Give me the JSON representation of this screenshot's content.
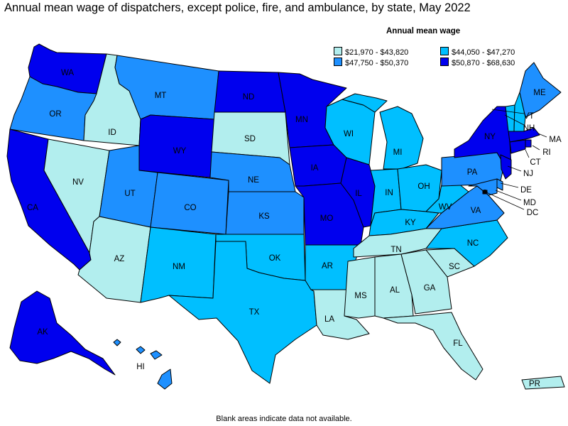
{
  "title": "Annual mean wage of dispatchers, except police, fire, and ambulance, by state, May 2022",
  "legend": {
    "title": "Annual mean wage",
    "items": [
      {
        "label": "$21,970 - $43,820",
        "color": "#b2eeee"
      },
      {
        "label": "$44,050 - $47,270",
        "color": "#00bfff"
      },
      {
        "label": "$47,750 - $50,370",
        "color": "#1e90ff"
      },
      {
        "label": "$50,870 - $68,630",
        "color": "#0000ee"
      }
    ]
  },
  "footnote": "Blank areas indicate data not available.",
  "states": [
    {
      "abbr": "WA",
      "bin": 3
    },
    {
      "abbr": "OR",
      "bin": 2
    },
    {
      "abbr": "CA",
      "bin": 3
    },
    {
      "abbr": "NV",
      "bin": 0
    },
    {
      "abbr": "ID",
      "bin": 0
    },
    {
      "abbr": "MT",
      "bin": 2
    },
    {
      "abbr": "WY",
      "bin": 3
    },
    {
      "abbr": "UT",
      "bin": 2
    },
    {
      "abbr": "AZ",
      "bin": 0
    },
    {
      "abbr": "CO",
      "bin": 2
    },
    {
      "abbr": "NM",
      "bin": 1
    },
    {
      "abbr": "ND",
      "bin": 3
    },
    {
      "abbr": "SD",
      "bin": 0
    },
    {
      "abbr": "NE",
      "bin": 2
    },
    {
      "abbr": "KS",
      "bin": 2
    },
    {
      "abbr": "OK",
      "bin": 1
    },
    {
      "abbr": "TX",
      "bin": 1
    },
    {
      "abbr": "MN",
      "bin": 3
    },
    {
      "abbr": "IA",
      "bin": 3
    },
    {
      "abbr": "MO",
      "bin": 3
    },
    {
      "abbr": "AR",
      "bin": 1
    },
    {
      "abbr": "LA",
      "bin": 0
    },
    {
      "abbr": "WI",
      "bin": 1
    },
    {
      "abbr": "IL",
      "bin": 3
    },
    {
      "abbr": "MI",
      "bin": 1
    },
    {
      "abbr": "IN",
      "bin": 1
    },
    {
      "abbr": "OH",
      "bin": 1
    },
    {
      "abbr": "KY",
      "bin": 1
    },
    {
      "abbr": "TN",
      "bin": 0
    },
    {
      "abbr": "MS",
      "bin": 0
    },
    {
      "abbr": "AL",
      "bin": 0
    },
    {
      "abbr": "GA",
      "bin": 0
    },
    {
      "abbr": "FL",
      "bin": 0
    },
    {
      "abbr": "SC",
      "bin": 0
    },
    {
      "abbr": "NC",
      "bin": 1
    },
    {
      "abbr": "VA",
      "bin": 2
    },
    {
      "abbr": "WV",
      "bin": 1
    },
    {
      "abbr": "PA",
      "bin": 2
    },
    {
      "abbr": "NY",
      "bin": 3
    },
    {
      "abbr": "VT",
      "bin": 1
    },
    {
      "abbr": "NH",
      "bin": 1
    },
    {
      "abbr": "ME",
      "bin": 2
    },
    {
      "abbr": "MA",
      "bin": 3
    },
    {
      "abbr": "RI",
      "bin": 3
    },
    {
      "abbr": "CT",
      "bin": 3
    },
    {
      "abbr": "NJ",
      "bin": 3
    },
    {
      "abbr": "DE",
      "bin": 2
    },
    {
      "abbr": "MD",
      "bin": 2
    },
    {
      "abbr": "DC",
      "bin": 3
    },
    {
      "abbr": "AK",
      "bin": 3
    },
    {
      "abbr": "HI",
      "bin": 2
    },
    {
      "abbr": "PR",
      "bin": 0
    }
  ]
}
